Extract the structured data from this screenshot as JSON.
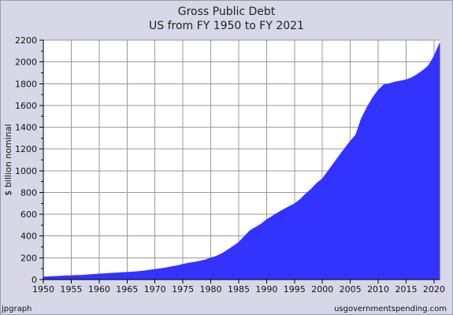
{
  "chart_data": {
    "type": "area",
    "title": "Gross Public Debt",
    "subtitle": "US from FY 1950 to FY 2021",
    "xlabel": "",
    "ylabel": "$ billion nominal",
    "xlim": [
      1950,
      2021
    ],
    "ylim": [
      0,
      2200
    ],
    "x_ticks": [
      1950,
      1955,
      1960,
      1965,
      1970,
      1975,
      1980,
      1985,
      1990,
      1995,
      2000,
      2005,
      2010,
      2015,
      2020
    ],
    "y_ticks": [
      0,
      200,
      400,
      600,
      800,
      1000,
      1200,
      1400,
      1600,
      1800,
      2000,
      2200
    ],
    "grid": true,
    "fill_color": "#3333ff",
    "plot_background": "#ffffff",
    "series": [
      {
        "x": [
          1950,
          1951,
          1952,
          1953,
          1954,
          1955,
          1956,
          1957,
          1958,
          1959,
          1960,
          1961,
          1962,
          1963,
          1964,
          1965,
          1966,
          1967,
          1968,
          1969,
          1970,
          1971,
          1972,
          1973,
          1974,
          1975,
          1976,
          1977,
          1978,
          1979,
          1980,
          1981,
          1982,
          1983,
          1984,
          1985,
          1986,
          1987,
          1988,
          1989,
          1990,
          1991,
          1992,
          1993,
          1994,
          1995,
          1996,
          1997,
          1998,
          1999,
          2000,
          2001,
          2002,
          2003,
          2004,
          2005,
          2006,
          2007,
          2008,
          2009,
          2010,
          2011,
          2012,
          2013,
          2014,
          2015,
          2016,
          2017,
          2018,
          2019,
          2020,
          2021
        ],
        "values": [
          23,
          25,
          28,
          31,
          34,
          35,
          38,
          39,
          43,
          47,
          51,
          53,
          57,
          60,
          63,
          66,
          69,
          73,
          79,
          86,
          92,
          100,
          108,
          118,
          127,
          139,
          150,
          158,
          168,
          180,
          198,
          214,
          238,
          270,
          305,
          340,
          395,
          448,
          478,
          508,
          550,
          580,
          613,
          642,
          670,
          695,
          735,
          785,
          830,
          885,
          925,
          995,
          1065,
          1135,
          1205,
          1270,
          1330,
          1480,
          1580,
          1670,
          1740,
          1790,
          1800,
          1815,
          1825,
          1835,
          1855,
          1885,
          1920,
          1965,
          2050,
          2170
        ]
      }
    ]
  },
  "footer": {
    "left": "jpgraph",
    "right": "usgovernmentspending.com"
  }
}
